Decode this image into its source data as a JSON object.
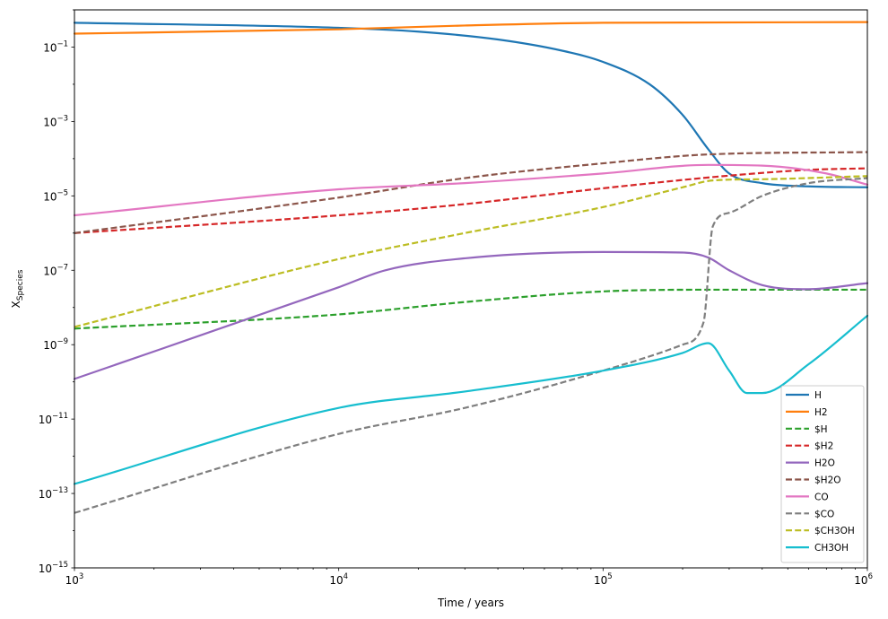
{
  "chart_data": {
    "type": "line",
    "xlabel": "Time / years",
    "ylabel_base": "X",
    "ylabel_sub": "Species",
    "x_scale": "log",
    "y_scale": "log",
    "xlim": [
      1000,
      1000000
    ],
    "ylim": [
      1e-15,
      1
    ],
    "x_ticks": [
      {
        "value": 1000,
        "base": "10",
        "exp": "3"
      },
      {
        "value": 10000,
        "base": "10",
        "exp": "4"
      },
      {
        "value": 100000,
        "base": "10",
        "exp": "5"
      },
      {
        "value": 1000000,
        "base": "10",
        "exp": "6"
      }
    ],
    "y_ticks": [
      {
        "value": 1e-15,
        "base": "10",
        "exp": "−15"
      },
      {
        "value": 1e-13,
        "base": "10",
        "exp": "−13"
      },
      {
        "value": 1e-11,
        "base": "10",
        "exp": "−11"
      },
      {
        "value": 1e-09,
        "base": "10",
        "exp": "−9"
      },
      {
        "value": 1e-07,
        "base": "10",
        "exp": "−7"
      },
      {
        "value": 1e-05,
        "base": "10",
        "exp": "−5"
      },
      {
        "value": 0.001,
        "base": "10",
        "exp": "−3"
      },
      {
        "value": 0.1,
        "base": "10",
        "exp": "−1"
      }
    ],
    "grid": false,
    "legend_position": "lower-right",
    "series": [
      {
        "name": "H",
        "color": "#1f77b4",
        "dash": "solid",
        "points": [
          [
            1000,
            0.45
          ],
          [
            10000,
            0.33
          ],
          [
            20000,
            0.26
          ],
          [
            40000,
            0.16
          ],
          [
            70000,
            0.08
          ],
          [
            100000,
            0.04
          ],
          [
            150000,
            0.01
          ],
          [
            200000,
            0.0015
          ],
          [
            250000,
            0.00018
          ],
          [
            300000,
            4e-05
          ],
          [
            400000,
            2.2e-05
          ],
          [
            600000,
            1.8e-05
          ],
          [
            1000000,
            1.7e-05
          ]
        ]
      },
      {
        "name": "H2",
        "color": "#ff7f0e",
        "dash": "solid",
        "points": [
          [
            1000,
            0.23
          ],
          [
            10000,
            0.3
          ],
          [
            30000,
            0.38
          ],
          [
            100000,
            0.45
          ],
          [
            1000000,
            0.47
          ]
        ]
      },
      {
        "name": "$H",
        "color": "#2ca02c",
        "dash": "dashed",
        "points": [
          [
            1000,
            2.7e-09
          ],
          [
            10000,
            6.5e-09
          ],
          [
            30000,
            1.4e-08
          ],
          [
            100000,
            2.7e-08
          ],
          [
            250000,
            3e-08
          ],
          [
            1000000,
            3e-08
          ]
        ]
      },
      {
        "name": "$H2",
        "color": "#d62728",
        "dash": "dashed",
        "points": [
          [
            1000,
            1e-06
          ],
          [
            10000,
            3e-06
          ],
          [
            30000,
            6e-06
          ],
          [
            100000,
            1.6e-05
          ],
          [
            300000,
            3.5e-05
          ],
          [
            600000,
            5e-05
          ],
          [
            1000000,
            5.5e-05
          ]
        ]
      },
      {
        "name": "H2O",
        "color": "#9467bd",
        "dash": "solid",
        "points": [
          [
            1000,
            1.2e-10
          ],
          [
            10000,
            3.5e-08
          ],
          [
            15000,
            1e-07
          ],
          [
            30000,
            2.1e-07
          ],
          [
            100000,
            3.1e-07
          ],
          [
            200000,
            3e-07
          ],
          [
            250000,
            2.2e-07
          ],
          [
            300000,
            1e-07
          ],
          [
            400000,
            4e-08
          ],
          [
            600000,
            3.1e-08
          ],
          [
            1000000,
            4.5e-08
          ]
        ]
      },
      {
        "name": "$H2O",
        "color": "#8c564b",
        "dash": "dashed",
        "points": [
          [
            1000,
            1e-06
          ],
          [
            10000,
            9e-06
          ],
          [
            30000,
            3e-05
          ],
          [
            100000,
            7.5e-05
          ],
          [
            250000,
            0.00013
          ],
          [
            1000000,
            0.00015
          ]
        ]
      },
      {
        "name": "CO",
        "color": "#e377c2",
        "dash": "solid",
        "points": [
          [
            1000,
            3e-06
          ],
          [
            10000,
            1.5e-05
          ],
          [
            30000,
            2.2e-05
          ],
          [
            100000,
            4e-05
          ],
          [
            250000,
            6.8e-05
          ],
          [
            400000,
            6.5e-05
          ],
          [
            700000,
            4e-05
          ],
          [
            1000000,
            2e-05
          ]
        ]
      },
      {
        "name": "$CO",
        "color": "#7f7f7f",
        "dash": "dashed",
        "points": [
          [
            1000,
            3e-14
          ],
          [
            10000,
            4e-12
          ],
          [
            30000,
            2e-11
          ],
          [
            100000,
            2e-10
          ],
          [
            200000,
            1e-09
          ],
          [
            240000,
            4e-09
          ],
          [
            260000,
            1.5e-06
          ],
          [
            300000,
            3.5e-06
          ],
          [
            400000,
            1e-05
          ],
          [
            600000,
            2.2e-05
          ],
          [
            1000000,
            3e-05
          ]
        ]
      },
      {
        "name": "$CH3OH",
        "color": "#bcbd22",
        "dash": "dashed",
        "points": [
          [
            1000,
            3e-09
          ],
          [
            10000,
            2e-07
          ],
          [
            30000,
            1e-06
          ],
          [
            100000,
            5e-06
          ],
          [
            200000,
            1.7e-05
          ],
          [
            260000,
            2.6e-05
          ],
          [
            400000,
            2.8e-05
          ],
          [
            1000000,
            3.4e-05
          ]
        ]
      },
      {
        "name": "CH3OH",
        "color": "#17becf",
        "dash": "solid",
        "points": [
          [
            1000,
            1.8e-13
          ],
          [
            10000,
            2e-11
          ],
          [
            30000,
            5.5e-11
          ],
          [
            100000,
            2e-10
          ],
          [
            200000,
            6e-10
          ],
          [
            250000,
            1.1e-09
          ],
          [
            300000,
            2e-10
          ],
          [
            350000,
            5e-11
          ],
          [
            400000,
            5e-11
          ],
          [
            600000,
            3e-10
          ],
          [
            1000000,
            6e-09
          ]
        ]
      }
    ]
  }
}
